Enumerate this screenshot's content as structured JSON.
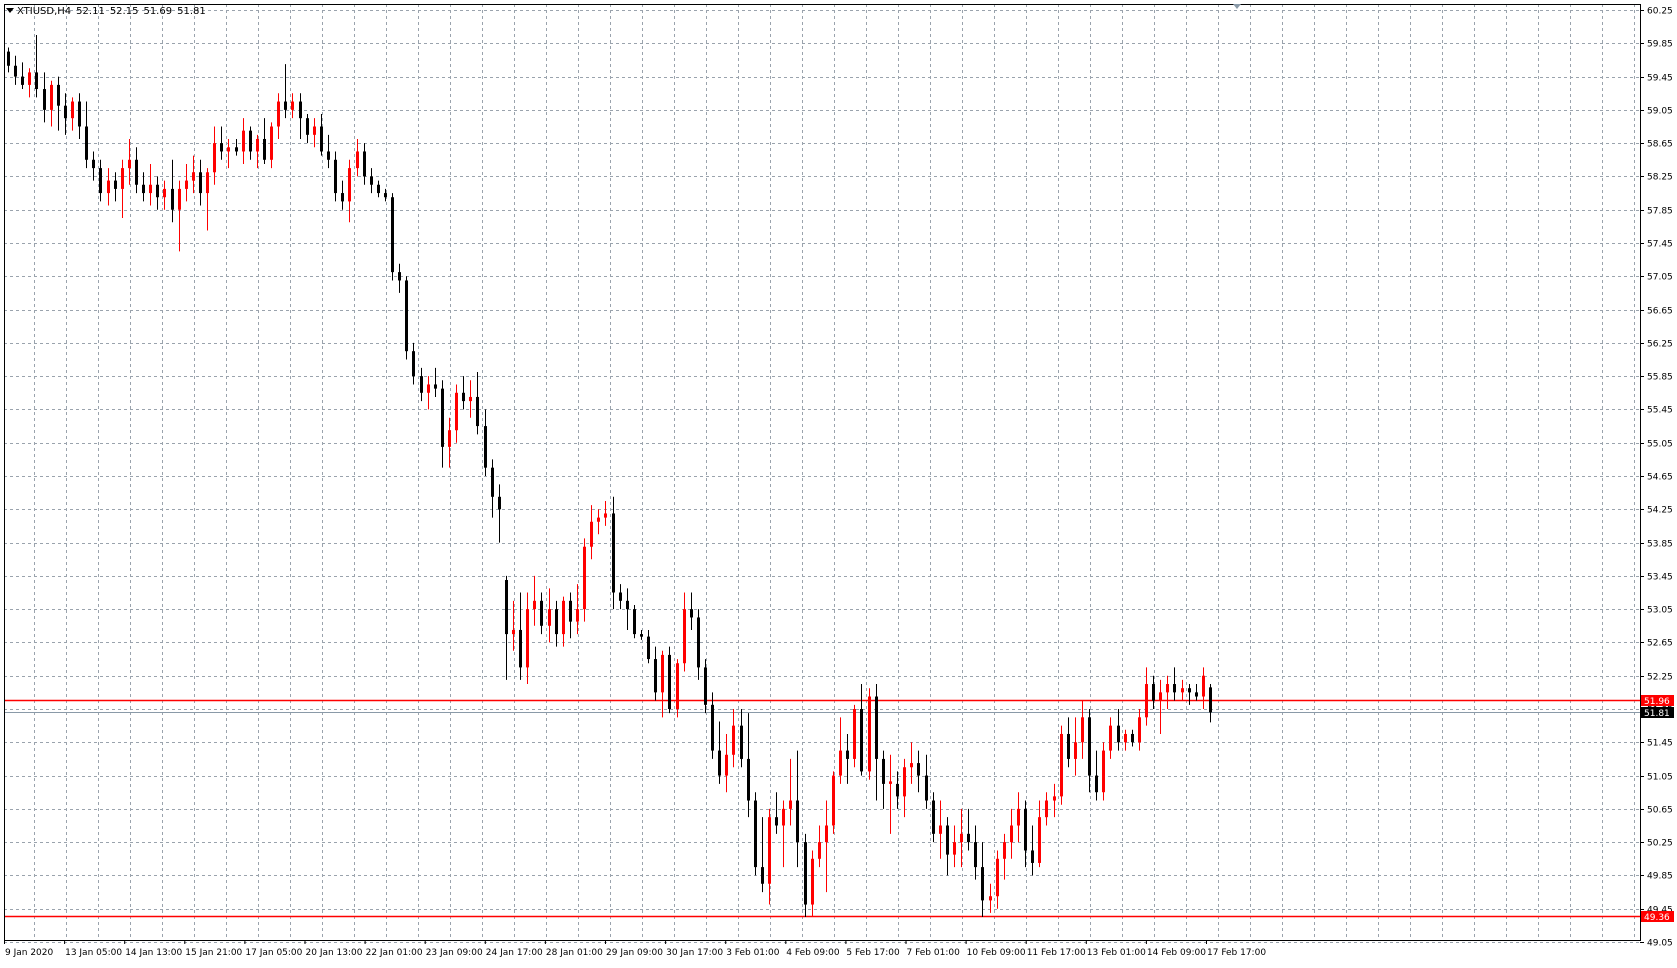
{
  "header": {
    "symbol": "XTIUSD,H4",
    "open": "52.11",
    "high": "52.15",
    "low": "51.69",
    "close": "51.81"
  },
  "colors": {
    "background": "#ffffff",
    "grid": "#9aa3ad",
    "bull_candle": "#ff0000",
    "bear_candle": "#000000",
    "doji": "#00c000",
    "level_line": "#ff0000",
    "bid_line": "#8a9aa8",
    "bid_label": "#000000"
  },
  "chart_data": {
    "type": "candlestick",
    "timeframe": "H4",
    "symbol": "XTIUSD",
    "ylim": [
      49.05,
      60.25
    ],
    "y_ticks": [
      "60.25",
      "59.85",
      "59.45",
      "59.05",
      "58.65",
      "58.25",
      "57.85",
      "57.45",
      "57.05",
      "56.65",
      "56.25",
      "55.85",
      "55.45",
      "55.05",
      "54.65",
      "54.25",
      "53.85",
      "53.45",
      "53.05",
      "52.65",
      "52.25",
      "51.85",
      "51.45",
      "51.05",
      "50.65",
      "50.25",
      "49.85",
      "49.45",
      "49.05"
    ],
    "x_ticks": [
      "9 Jan 2020",
      "13 Jan 05:00",
      "14 Jan 13:00",
      "15 Jan 21:00",
      "17 Jan 05:00",
      "20 Jan 13:00",
      "22 Jan 01:00",
      "23 Jan 09:00",
      "24 Jan 17:00",
      "28 Jan 01:00",
      "29 Jan 09:00",
      "30 Jan 17:00",
      "3 Feb 01:00",
      "4 Feb 09:00",
      "5 Feb 17:00",
      "7 Feb 01:00",
      "10 Feb 09:00",
      "11 Feb 17:00",
      "13 Feb 01:00",
      "14 Feb 09:00",
      "17 Feb 17:00"
    ],
    "horizontal_levels": [
      {
        "price": 51.96,
        "label": "51.96",
        "style": "level"
      },
      {
        "price": 49.36,
        "label": "49.36",
        "style": "level"
      },
      {
        "price": 51.81,
        "label": "51.81",
        "style": "bid"
      }
    ],
    "grid": true,
    "candles": [
      [
        59.75,
        59.8,
        59.5,
        59.58
      ],
      [
        59.58,
        59.7,
        59.35,
        59.45
      ],
      [
        59.45,
        59.62,
        59.3,
        59.35
      ],
      [
        59.35,
        59.55,
        59.2,
        59.5
      ],
      [
        59.5,
        59.95,
        59.2,
        59.3
      ],
      [
        59.3,
        59.5,
        58.9,
        59.05
      ],
      [
        59.05,
        59.4,
        58.85,
        59.35
      ],
      [
        59.35,
        59.45,
        58.8,
        59.1
      ],
      [
        59.1,
        59.25,
        58.75,
        58.95
      ],
      [
        58.95,
        59.2,
        58.8,
        59.15
      ],
      [
        59.15,
        59.25,
        58.7,
        58.85
      ],
      [
        58.85,
        59.15,
        58.35,
        58.45
      ],
      [
        58.45,
        58.55,
        58.2,
        58.35
      ],
      [
        58.35,
        58.45,
        57.95,
        58.05
      ],
      [
        58.05,
        58.35,
        57.9,
        58.2
      ],
      [
        58.2,
        58.3,
        57.95,
        58.1
      ],
      [
        58.1,
        58.45,
        57.75,
        58.35
      ],
      [
        58.35,
        58.7,
        58.15,
        58.45
      ],
      [
        58.45,
        58.6,
        58.05,
        58.15
      ],
      [
        58.15,
        58.3,
        57.95,
        58.05
      ],
      [
        58.05,
        58.4,
        57.9,
        58.15
      ],
      [
        58.15,
        58.25,
        57.85,
        58.0
      ],
      [
        58.0,
        58.2,
        57.85,
        58.1
      ],
      [
        58.1,
        58.45,
        57.7,
        57.85
      ],
      [
        57.85,
        58.2,
        57.35,
        58.1
      ],
      [
        58.1,
        58.4,
        57.95,
        58.2
      ],
      [
        58.2,
        58.5,
        58.05,
        58.3
      ],
      [
        58.3,
        58.45,
        57.9,
        58.05
      ],
      [
        58.05,
        58.35,
        57.6,
        58.3
      ],
      [
        58.3,
        58.85,
        58.15,
        58.65
      ],
      [
        58.65,
        58.85,
        58.45,
        58.55
      ],
      [
        58.55,
        58.7,
        58.35,
        58.6
      ],
      [
        58.6,
        58.7,
        58.5,
        58.55
      ],
      [
        58.55,
        58.95,
        58.4,
        58.8
      ],
      [
        58.8,
        58.85,
        58.45,
        58.55
      ],
      [
        58.55,
        58.75,
        58.35,
        58.7
      ],
      [
        58.7,
        58.95,
        58.4,
        58.45
      ],
      [
        58.45,
        58.9,
        58.35,
        58.85
      ],
      [
        58.85,
        59.25,
        58.7,
        59.15
      ],
      [
        59.15,
        59.6,
        58.95,
        59.05
      ],
      [
        59.05,
        59.25,
        58.95,
        59.15
      ],
      [
        59.15,
        59.25,
        58.7,
        58.95
      ],
      [
        58.95,
        59.0,
        58.65,
        58.75
      ],
      [
        58.75,
        58.95,
        58.6,
        58.85
      ],
      [
        58.85,
        59.0,
        58.5,
        58.55
      ],
      [
        58.55,
        58.75,
        58.35,
        58.45
      ],
      [
        58.45,
        58.55,
        57.95,
        58.05
      ],
      [
        58.05,
        58.2,
        57.85,
        57.95
      ],
      [
        57.95,
        58.45,
        57.7,
        58.35
      ],
      [
        58.35,
        58.7,
        58.25,
        58.55
      ],
      [
        58.55,
        58.65,
        58.15,
        58.25
      ],
      [
        58.25,
        58.35,
        58.05,
        58.15
      ],
      [
        58.15,
        58.2,
        58.0,
        58.05
      ],
      [
        58.05,
        58.1,
        57.95,
        58.0
      ],
      [
        58.0,
        58.05,
        57.0,
        57.1
      ],
      [
        57.1,
        57.2,
        56.85,
        57.0
      ],
      [
        57.0,
        57.05,
        56.05,
        56.15
      ],
      [
        56.15,
        56.25,
        55.75,
        55.85
      ],
      [
        55.85,
        55.95,
        55.55,
        55.65
      ],
      [
        55.65,
        55.85,
        55.45,
        55.75
      ],
      [
        55.75,
        55.95,
        55.6,
        55.7
      ],
      [
        55.7,
        55.8,
        54.75,
        55.0
      ],
      [
        55.0,
        55.35,
        54.75,
        55.2
      ],
      [
        55.2,
        55.75,
        55.05,
        55.65
      ],
      [
        55.65,
        55.85,
        55.45,
        55.55
      ],
      [
        55.55,
        55.8,
        55.35,
        55.6
      ],
      [
        55.6,
        55.9,
        55.15,
        55.25
      ],
      [
        55.25,
        55.45,
        54.65,
        54.75
      ],
      [
        54.75,
        54.85,
        54.15,
        54.4
      ],
      [
        54.4,
        54.55,
        53.85,
        54.25
      ],
      [
        53.4,
        53.45,
        52.2,
        52.75
      ],
      [
        52.75,
        53.15,
        52.55,
        52.8
      ],
      [
        52.8,
        53.25,
        52.2,
        52.35
      ],
      [
        52.35,
        53.25,
        52.15,
        53.05
      ],
      [
        53.05,
        53.45,
        52.85,
        53.15
      ],
      [
        53.15,
        53.25,
        52.75,
        52.85
      ],
      [
        52.85,
        53.3,
        52.65,
        53.05
      ],
      [
        53.05,
        53.15,
        52.6,
        52.75
      ],
      [
        52.75,
        53.2,
        52.6,
        53.15
      ],
      [
        53.15,
        53.25,
        52.7,
        52.9
      ],
      [
        52.9,
        53.35,
        52.75,
        53.05
      ],
      [
        53.05,
        53.9,
        52.9,
        53.8
      ],
      [
        53.8,
        54.3,
        53.65,
        54.1
      ],
      [
        54.1,
        54.25,
        53.95,
        54.15
      ],
      [
        54.15,
        54.35,
        54.05,
        54.2
      ],
      [
        54.2,
        54.4,
        53.05,
        53.25
      ],
      [
        53.25,
        53.35,
        53.05,
        53.15
      ],
      [
        53.15,
        53.3,
        52.8,
        53.05
      ],
      [
        53.05,
        53.1,
        52.7,
        52.75
      ],
      [
        52.75,
        52.8,
        52.68,
        52.72
      ],
      [
        52.72,
        52.8,
        52.4,
        52.45
      ],
      [
        52.45,
        52.6,
        51.95,
        52.05
      ],
      [
        52.05,
        52.55,
        51.75,
        52.5
      ],
      [
        52.5,
        52.6,
        51.8,
        51.85
      ],
      [
        51.85,
        52.45,
        51.75,
        52.4
      ],
      [
        52.4,
        53.25,
        52.3,
        53.05
      ],
      [
        53.05,
        53.25,
        52.8,
        52.95
      ],
      [
        52.95,
        53.05,
        52.2,
        52.35
      ],
      [
        52.35,
        52.45,
        51.8,
        51.9
      ],
      [
        51.9,
        52.05,
        51.25,
        51.35
      ],
      [
        51.35,
        51.7,
        50.95,
        51.05
      ],
      [
        51.05,
        51.55,
        50.85,
        51.3
      ],
      [
        51.3,
        51.85,
        51.15,
        51.65
      ],
      [
        51.65,
        51.85,
        51.15,
        51.25
      ],
      [
        51.25,
        51.8,
        50.55,
        50.75
      ],
      [
        50.75,
        50.85,
        49.85,
        49.95
      ],
      [
        49.95,
        50.55,
        49.65,
        49.75
      ],
      [
        49.75,
        50.65,
        49.5,
        50.55
      ],
      [
        50.55,
        50.85,
        50.35,
        50.45
      ],
      [
        50.45,
        50.75,
        49.95,
        50.65
      ],
      [
        50.65,
        51.25,
        50.45,
        50.75
      ],
      [
        50.75,
        51.35,
        49.95,
        50.25
      ],
      [
        50.25,
        50.35,
        49.35,
        49.5
      ],
      [
        49.5,
        50.15,
        49.35,
        50.05
      ],
      [
        50.05,
        50.45,
        49.95,
        50.25
      ],
      [
        50.25,
        50.75,
        49.65,
        50.45
      ],
      [
        50.45,
        51.1,
        50.35,
        51.05
      ],
      [
        51.05,
        51.75,
        50.95,
        51.35
      ],
      [
        51.35,
        51.55,
        50.95,
        51.25
      ],
      [
        51.25,
        51.9,
        51.15,
        51.85
      ],
      [
        51.85,
        52.15,
        51.05,
        51.1
      ],
      [
        51.1,
        52.1,
        51.0,
        52.0
      ],
      [
        52.0,
        52.15,
        50.75,
        51.25
      ],
      [
        51.25,
        51.35,
        50.65,
        50.95
      ],
      [
        50.95,
        51.3,
        50.35,
        50.98
      ],
      [
        50.95,
        51.1,
        50.65,
        50.8
      ],
      [
        50.8,
        51.25,
        50.55,
        51.15
      ],
      [
        51.15,
        51.45,
        50.95,
        51.2
      ],
      [
        51.2,
        51.35,
        50.85,
        51.05
      ],
      [
        51.05,
        51.3,
        50.65,
        50.75
      ],
      [
        50.75,
        50.85,
        50.25,
        50.35
      ],
      [
        50.35,
        50.75,
        50.05,
        50.45
      ],
      [
        50.45,
        50.55,
        49.85,
        50.1
      ],
      [
        50.1,
        50.45,
        49.95,
        50.25
      ],
      [
        50.25,
        50.65,
        49.95,
        50.35
      ],
      [
        50.35,
        50.65,
        50.15,
        50.25
      ],
      [
        50.25,
        50.45,
        49.8,
        49.95
      ],
      [
        49.95,
        50.25,
        49.35,
        49.55
      ],
      [
        49.55,
        49.75,
        49.4,
        49.6
      ],
      [
        49.6,
        50.15,
        49.45,
        50.05
      ],
      [
        50.05,
        50.35,
        49.8,
        50.25
      ],
      [
        50.25,
        50.65,
        50.05,
        50.45
      ],
      [
        50.45,
        50.85,
        50.25,
        50.65
      ],
      [
        50.65,
        50.75,
        49.95,
        50.15
      ],
      [
        50.15,
        50.45,
        49.85,
        50.0
      ],
      [
        50.0,
        50.75,
        49.95,
        50.55
      ],
      [
        50.55,
        50.85,
        50.45,
        50.75
      ],
      [
        50.75,
        50.95,
        50.55,
        50.8
      ],
      [
        50.8,
        51.65,
        50.7,
        51.55
      ],
      [
        51.55,
        51.75,
        51.15,
        51.25
      ],
      [
        51.25,
        51.75,
        51.05,
        51.45
      ],
      [
        51.45,
        51.95,
        51.25,
        51.75
      ],
      [
        51.75,
        51.85,
        50.85,
        51.05
      ],
      [
        51.05,
        51.35,
        50.75,
        50.85
      ],
      [
        50.85,
        51.45,
        50.75,
        51.35
      ],
      [
        51.35,
        51.75,
        51.25,
        51.65
      ],
      [
        51.65,
        51.85,
        51.35,
        51.45
      ],
      [
        51.45,
        51.6,
        51.35,
        51.55
      ],
      [
        51.55,
        51.6,
        51.4,
        51.45
      ],
      [
        51.45,
        51.85,
        51.35,
        51.75
      ],
      [
        51.75,
        52.35,
        51.65,
        52.15
      ],
      [
        52.15,
        52.25,
        51.85,
        51.95
      ],
      [
        51.95,
        52.2,
        51.55,
        52.05
      ],
      [
        52.05,
        52.25,
        51.85,
        52.15
      ],
      [
        52.15,
        52.35,
        51.95,
        52.05
      ],
      [
        52.05,
        52.2,
        51.95,
        52.1
      ],
      [
        52.1,
        52.15,
        51.9,
        52.05
      ],
      [
        52.05,
        52.15,
        51.95,
        52.0
      ],
      [
        52.0,
        52.35,
        51.85,
        52.25
      ],
      [
        52.11,
        52.15,
        51.69,
        51.81
      ]
    ]
  }
}
